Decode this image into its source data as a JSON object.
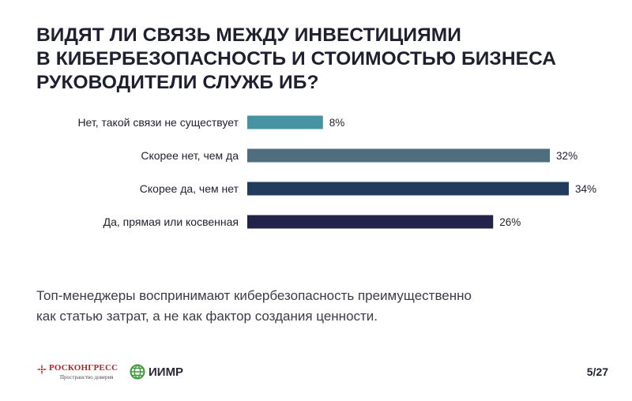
{
  "title_lines": [
    "ВИДЯТ ЛИ СВЯЗЬ МЕЖДУ ИНВЕСТИЦИЯМИ",
    "В КИБЕРБЕЗОПАСНОСТЬ И СТОИМОСТЬЮ БИЗНЕСА",
    "РУКОВОДИТЕЛИ СЛУЖБ ИБ?"
  ],
  "chart_data": {
    "type": "bar",
    "orientation": "horizontal",
    "categories": [
      "Нет, такой связи не существует",
      "Скорее нет, чем да",
      "Скорее да, чем нет",
      "Да, прямая или косвенная"
    ],
    "values": [
      8,
      32,
      34,
      26
    ],
    "value_labels": [
      "8%",
      "32%",
      "34%",
      "26%"
    ],
    "unit": "%",
    "colors": [
      "#4593a3",
      "#4e6e7f",
      "#213c5d",
      "#22224b"
    ],
    "xlim": [
      0,
      34
    ],
    "grid": false,
    "legend": "none"
  },
  "note_lines": [
    "Топ-менеджеры воспринимают кибербезопасность преимущественно",
    "как статью затрат, а не как фактор создания ценности."
  ],
  "footer": {
    "logo1_name": "РОСКОНГРЕСС",
    "logo1_sub": "Пространство доверия",
    "logo2_name": "ИИМР",
    "page": "5/27"
  },
  "accent_colors": {
    "roscongress_red": "#b0242b",
    "iimr_green": "#3f9a3a"
  }
}
